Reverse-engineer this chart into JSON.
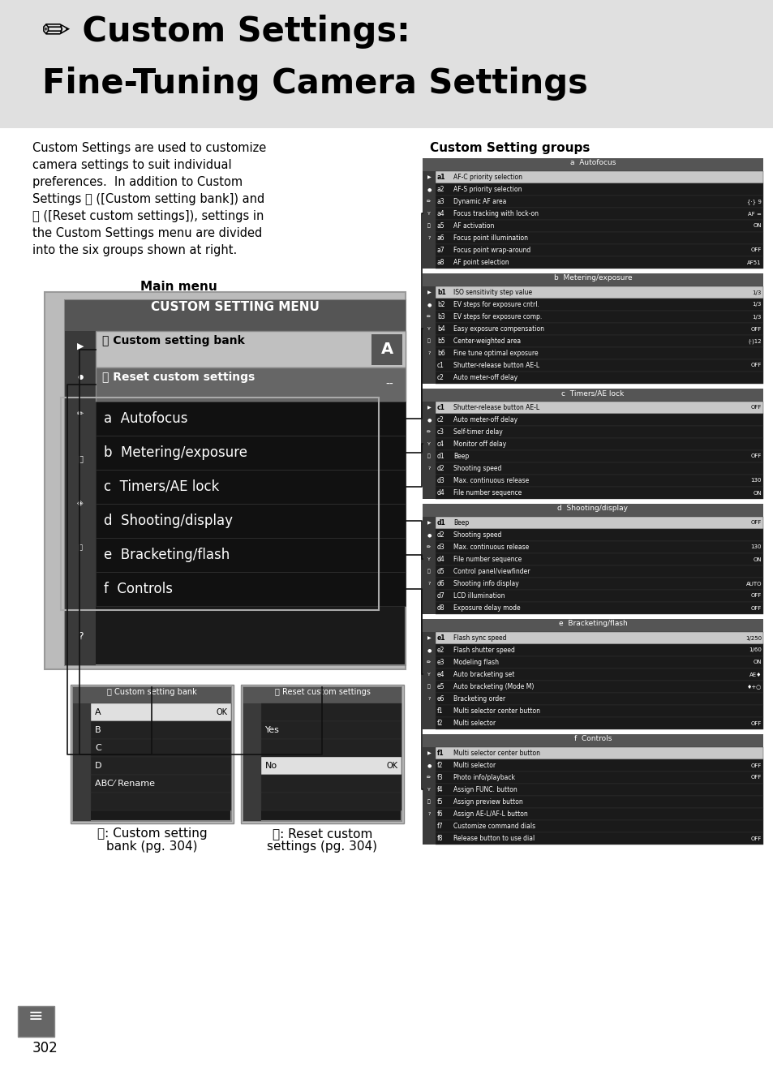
{
  "bg_color": "#e8e8e8",
  "white": "#ffffff",
  "black": "#000000",
  "title_line1": "✏ Custom Settings:",
  "title_line2": "Fine-Tuning Camera Settings",
  "body_text_lines": [
    "Custom Settings are used to customize",
    "camera settings to suit individual",
    "preferences.  In addition to Custom",
    "Settings Ⓒ ([Custom setting bank]) and",
    "Ⓡ ([Reset custom settings]), settings in",
    "the Custom Settings menu are divided",
    "into the six groups shown at right."
  ],
  "main_menu_label": "Main menu",
  "custom_setting_groups_label": "Custom Setting groups",
  "menu_title": "CUSTOM SETTING MENU",
  "group_a_title": "a  Autofocus",
  "group_a_items": [
    [
      "a1",
      "AF-C priority selection",
      ""
    ],
    [
      "a2",
      "AF-S priority selection",
      ""
    ],
    [
      "a3",
      "Dynamic AF area",
      "{·} 9"
    ],
    [
      "a4",
      "Focus tracking with lock-on",
      "AF ="
    ],
    [
      "a5",
      "AF activation",
      "ON"
    ],
    [
      "a6",
      "Focus point illumination",
      ""
    ],
    [
      "a7",
      "Focus point wrap-around",
      "OFF"
    ],
    [
      "a8",
      "AF point selection",
      "AF51"
    ]
  ],
  "group_b_title": "b  Metering/exposure",
  "group_b_items": [
    [
      "b1",
      "ISO sensitivity step value",
      "1/3"
    ],
    [
      "b2",
      "EV steps for exposure cntrl.",
      "1/3"
    ],
    [
      "b3",
      "EV steps for exposure comp.",
      "1/3"
    ],
    [
      "b4",
      "Easy exposure compensation",
      "OFF"
    ],
    [
      "b5",
      "Center-weighted area",
      "(·)12"
    ],
    [
      "b6",
      "Fine tune optimal exposure",
      ""
    ],
    [
      "c1",
      "Shutter-release button AE-L",
      "OFF"
    ],
    [
      "c2",
      "Auto meter-off delay",
      ""
    ]
  ],
  "group_c_title": "c  Timers/AE lock",
  "group_c_items": [
    [
      "c1",
      "Shutter-release button AE-L",
      "OFF"
    ],
    [
      "c2",
      "Auto meter-off delay",
      ""
    ],
    [
      "c3",
      "Self-timer delay",
      ""
    ],
    [
      "c4",
      "Monitor off delay",
      ""
    ],
    [
      "d1",
      "Beep",
      "OFF"
    ],
    [
      "d2",
      "Shooting speed",
      ""
    ],
    [
      "d3",
      "Max. continuous release",
      "130"
    ],
    [
      "d4",
      "File number sequence",
      "ON"
    ]
  ],
  "group_d_title": "d  Shooting/display",
  "group_d_items": [
    [
      "d1",
      "Beep",
      "OFF"
    ],
    [
      "d2",
      "Shooting speed",
      ""
    ],
    [
      "d3",
      "Max. continuous release",
      "130"
    ],
    [
      "d4",
      "File number sequence",
      "ON"
    ],
    [
      "d5",
      "Control panel/viewfinder",
      ""
    ],
    [
      "d6",
      "Shooting info display",
      "AUTO"
    ],
    [
      "d7",
      "LCD illumination",
      "OFF"
    ],
    [
      "d8",
      "Exposure delay mode",
      "OFF"
    ]
  ],
  "group_e_title": "e  Bracketing/flash",
  "group_e_items": [
    [
      "e1",
      "Flash sync speed",
      "1/250"
    ],
    [
      "e2",
      "Flash shutter speed",
      "1/60"
    ],
    [
      "e3",
      "Modeling flash",
      "ON"
    ],
    [
      "e4",
      "Auto bracketing set",
      "AE♦"
    ],
    [
      "e5",
      "Auto bracketing (Mode M)",
      "♦+○"
    ],
    [
      "e6",
      "Bracketing order",
      ""
    ],
    [
      "f1",
      "Multi selector center button",
      ""
    ],
    [
      "f2",
      "Multi selector",
      "OFF"
    ]
  ],
  "group_f_title": "f  Controls",
  "group_f_items": [
    [
      "f1",
      "Multi selector center button",
      ""
    ],
    [
      "f2",
      "Multi selector",
      "OFF"
    ],
    [
      "f3",
      "Photo info/playback",
      "OFF"
    ],
    [
      "f4",
      "Assign FUNC. button",
      ""
    ],
    [
      "f5",
      "Assign preview button",
      ""
    ],
    [
      "f6",
      "Assign AE-L/AF-L button",
      ""
    ],
    [
      "f7",
      "Customize command dials",
      ""
    ],
    [
      "f8",
      "Release button to use dial",
      "OFF"
    ]
  ],
  "page_number": "302"
}
